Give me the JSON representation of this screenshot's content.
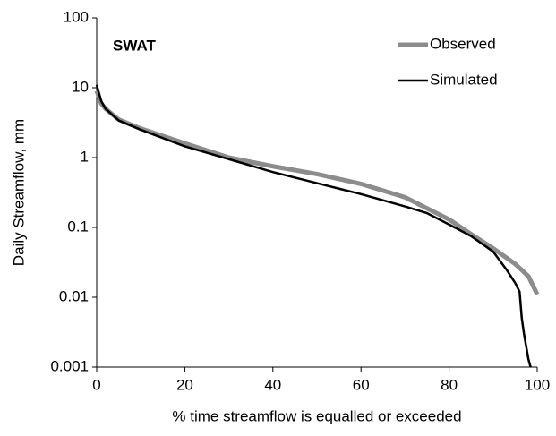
{
  "chart_data": {
    "type": "line",
    "annotation": "SWAT",
    "xlabel": "% time streamflow is equalled or exceeded",
    "ylabel": "Daily Streamflow, mm",
    "xlim": [
      0,
      100
    ],
    "xticks": [
      0,
      20,
      40,
      60,
      80,
      100
    ],
    "ylim": [
      0.001,
      100
    ],
    "yticks": [
      0.001,
      0.01,
      0.1,
      1,
      10,
      100
    ],
    "log_y": true,
    "grid": false,
    "legend": "upper right",
    "series": [
      {
        "name": "Observed",
        "color": "#8c8c8c",
        "x": [
          0,
          1,
          2,
          5,
          10,
          20,
          30,
          40,
          50,
          60,
          70,
          80,
          85,
          90,
          95,
          98,
          100
        ],
        "values": [
          9,
          6,
          5,
          3.5,
          2.6,
          1.6,
          1.0,
          0.75,
          0.58,
          0.42,
          0.27,
          0.13,
          0.08,
          0.05,
          0.03,
          0.02,
          0.011
        ]
      },
      {
        "name": "Simulated",
        "color": "#000000",
        "x": [
          0,
          1,
          2,
          5,
          10,
          20,
          30,
          40,
          50,
          60,
          70,
          75,
          80,
          85,
          90,
          93,
          95,
          96,
          96.5,
          97,
          98,
          98.5
        ],
        "values": [
          11,
          6.5,
          5,
          3.4,
          2.5,
          1.45,
          0.95,
          0.62,
          0.43,
          0.3,
          0.2,
          0.16,
          0.11,
          0.075,
          0.045,
          0.025,
          0.016,
          0.012,
          0.005,
          0.003,
          0.0013,
          0.001
        ]
      }
    ]
  }
}
